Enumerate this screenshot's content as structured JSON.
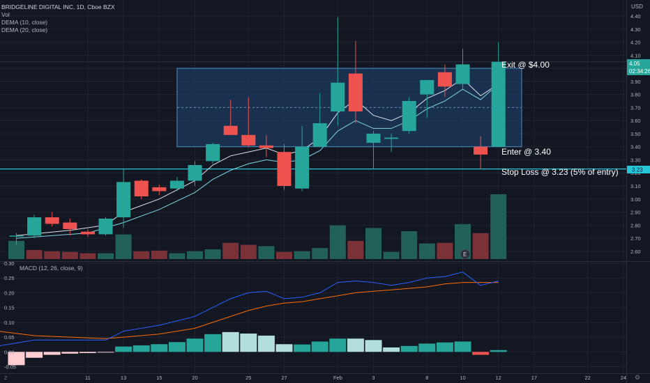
{
  "header": {
    "symbol_line": "BRIDGELINE DIGITAL INC, 1D, Cboe BZX",
    "indicators": [
      "Vol",
      "DEMA (10, close)",
      "DEMA (20, close)"
    ]
  },
  "macd_header": "MACD (12, 26, close, 9)",
  "currency_label": "USD",
  "annotations": {
    "exit": "Exit @ $4.00",
    "enter": "Enter @ 3.40",
    "stop": "Stop Loss @ 3.23 (5% of entry)"
  },
  "price_badges": {
    "last": "4.05",
    "countdown": "02:34:26",
    "stop": "3.23"
  },
  "earnings_marker": "E",
  "colors": {
    "background": "#131722",
    "up": "#26a69a",
    "down": "#ef5350",
    "vol_up": "#22605a",
    "vol_down": "#7a3238",
    "dema10": "#e0e3eb",
    "dema20": "#7fd7e3",
    "macd_line": "#2962ff",
    "signal_line": "#ff6d00",
    "zone_fill": "#1e3a5f",
    "zone_border": "#4a90c8",
    "stop_line": "#26c6da"
  },
  "chart_data": {
    "type": "candlestick",
    "x_tick_labels": [
      "11",
      "13",
      "15",
      "20",
      "25",
      "27",
      "Feb",
      "3",
      "8",
      "10",
      "12",
      "17",
      "22",
      "24"
    ],
    "x_tick_positions": [
      4,
      6,
      8,
      10,
      13,
      15,
      18,
      20,
      23,
      25,
      27,
      29,
      32,
      34
    ],
    "price_axis": {
      "min": 2.53,
      "max": 4.48,
      "ticks": [
        2.6,
        2.7,
        2.8,
        2.9,
        3.0,
        3.1,
        3.2,
        3.3,
        3.4,
        3.5,
        3.6,
        3.7,
        3.8,
        3.9,
        4.0,
        4.1,
        4.2,
        4.3,
        4.4
      ]
    },
    "candles": [
      {
        "i": 0,
        "o": 2.72,
        "h": 2.74,
        "l": 2.65,
        "c": 2.72
      },
      {
        "i": 1,
        "o": 2.72,
        "h": 2.88,
        "l": 2.7,
        "c": 2.86
      },
      {
        "i": 2,
        "o": 2.86,
        "h": 2.9,
        "l": 2.79,
        "c": 2.81
      },
      {
        "i": 3,
        "o": 2.82,
        "h": 2.85,
        "l": 2.72,
        "c": 2.77
      },
      {
        "i": 4,
        "o": 2.75,
        "h": 2.77,
        "l": 2.71,
        "c": 2.73
      },
      {
        "i": 5,
        "o": 2.73,
        "h": 2.86,
        "l": 2.72,
        "c": 2.85
      },
      {
        "i": 6,
        "o": 2.86,
        "h": 3.23,
        "l": 2.78,
        "c": 3.13
      },
      {
        "i": 7,
        "o": 3.14,
        "h": 3.15,
        "l": 3.0,
        "c": 3.02
      },
      {
        "i": 8,
        "o": 3.09,
        "h": 3.11,
        "l": 3.03,
        "c": 3.06
      },
      {
        "i": 9,
        "o": 3.08,
        "h": 3.17,
        "l": 3.06,
        "c": 3.14
      },
      {
        "i": 10,
        "o": 3.14,
        "h": 3.29,
        "l": 3.1,
        "c": 3.26
      },
      {
        "i": 11,
        "o": 3.29,
        "h": 3.43,
        "l": 3.27,
        "c": 3.42
      },
      {
        "i": 12,
        "o": 3.56,
        "h": 3.76,
        "l": 3.5,
        "c": 3.49
      },
      {
        "i": 13,
        "o": 3.49,
        "h": 3.78,
        "l": 3.4,
        "c": 3.41
      },
      {
        "i": 14,
        "o": 3.41,
        "h": 3.49,
        "l": 3.32,
        "c": 3.39
      },
      {
        "i": 15,
        "o": 3.36,
        "h": 3.42,
        "l": 3.07,
        "c": 3.1
      },
      {
        "i": 16,
        "o": 3.08,
        "h": 3.56,
        "l": 3.06,
        "c": 3.4
      },
      {
        "i": 17,
        "o": 3.4,
        "h": 3.81,
        "l": 3.4,
        "c": 3.58
      },
      {
        "i": 18,
        "o": 3.67,
        "h": 4.39,
        "l": 3.56,
        "c": 3.89
      },
      {
        "i": 19,
        "o": 3.96,
        "h": 4.21,
        "l": 3.58,
        "c": 3.67
      },
      {
        "i": 20,
        "o": 3.43,
        "h": 3.52,
        "l": 3.23,
        "c": 3.5
      },
      {
        "i": 21,
        "o": 3.46,
        "h": 3.5,
        "l": 3.36,
        "c": 3.47
      },
      {
        "i": 22,
        "o": 3.52,
        "h": 3.78,
        "l": 3.5,
        "c": 3.75
      },
      {
        "i": 23,
        "o": 3.8,
        "h": 3.9,
        "l": 3.62,
        "c": 3.91
      },
      {
        "i": 24,
        "o": 3.97,
        "h": 4.03,
        "l": 3.78,
        "c": 3.86
      },
      {
        "i": 25,
        "o": 3.88,
        "h": 4.15,
        "l": 3.84,
        "c": 4.03
      },
      {
        "i": 26,
        "o": 3.4,
        "h": 3.48,
        "l": 3.23,
        "c": 3.34
      },
      {
        "i": 27,
        "o": 3.4,
        "h": 4.2,
        "l": 3.4,
        "c": 4.05
      }
    ],
    "dema10": [
      [
        0,
        2.72
      ],
      [
        3,
        2.76
      ],
      [
        5,
        2.8
      ],
      [
        6,
        2.9
      ],
      [
        8,
        3.0
      ],
      [
        10,
        3.14
      ],
      [
        11,
        3.26
      ],
      [
        12,
        3.33
      ],
      [
        13,
        3.36
      ],
      [
        14,
        3.39
      ],
      [
        15,
        3.34
      ],
      [
        16,
        3.37
      ],
      [
        17,
        3.47
      ],
      [
        18,
        3.66
      ],
      [
        19,
        3.76
      ],
      [
        20,
        3.64
      ],
      [
        21,
        3.6
      ],
      [
        22,
        3.66
      ],
      [
        23,
        3.77
      ],
      [
        24,
        3.83
      ],
      [
        25,
        3.92
      ],
      [
        26,
        3.79
      ],
      [
        27,
        3.88
      ]
    ],
    "dema20": [
      [
        0,
        2.7
      ],
      [
        4,
        2.74
      ],
      [
        6,
        2.82
      ],
      [
        8,
        2.92
      ],
      [
        10,
        3.05
      ],
      [
        11,
        3.15
      ],
      [
        12,
        3.22
      ],
      [
        13,
        3.27
      ],
      [
        14,
        3.3
      ],
      [
        15,
        3.28
      ],
      [
        16,
        3.3
      ],
      [
        17,
        3.37
      ],
      [
        18,
        3.52
      ],
      [
        19,
        3.6
      ],
      [
        20,
        3.54
      ],
      [
        21,
        3.54
      ],
      [
        22,
        3.6
      ],
      [
        23,
        3.69
      ],
      [
        24,
        3.75
      ],
      [
        25,
        3.84
      ],
      [
        26,
        3.76
      ],
      [
        27,
        3.88
      ]
    ],
    "volume_axis": {
      "max": 100
    },
    "volume": [
      {
        "i": 0,
        "v": 28,
        "up": true
      },
      {
        "i": 1,
        "v": 14,
        "up": false
      },
      {
        "i": 2,
        "v": 12,
        "up": false
      },
      {
        "i": 3,
        "v": 11,
        "up": false
      },
      {
        "i": 4,
        "v": 9,
        "up": false
      },
      {
        "i": 5,
        "v": 9,
        "up": true
      },
      {
        "i": 6,
        "v": 38,
        "up": true
      },
      {
        "i": 7,
        "v": 12,
        "up": false
      },
      {
        "i": 8,
        "v": 13,
        "up": false
      },
      {
        "i": 9,
        "v": 9,
        "up": true
      },
      {
        "i": 10,
        "v": 12,
        "up": true
      },
      {
        "i": 11,
        "v": 15,
        "up": true
      },
      {
        "i": 12,
        "v": 25,
        "up": false
      },
      {
        "i": 13,
        "v": 22,
        "up": false
      },
      {
        "i": 14,
        "v": 20,
        "up": true
      },
      {
        "i": 15,
        "v": 11,
        "up": false
      },
      {
        "i": 16,
        "v": 12,
        "up": true
      },
      {
        "i": 17,
        "v": 17,
        "up": true
      },
      {
        "i": 18,
        "v": 52,
        "up": true
      },
      {
        "i": 19,
        "v": 28,
        "up": false
      },
      {
        "i": 20,
        "v": 48,
        "up": true
      },
      {
        "i": 21,
        "v": 11,
        "up": true
      },
      {
        "i": 22,
        "v": 43,
        "up": true
      },
      {
        "i": 23,
        "v": 24,
        "up": true
      },
      {
        "i": 24,
        "v": 25,
        "up": false
      },
      {
        "i": 25,
        "v": 54,
        "up": true
      },
      {
        "i": 26,
        "v": 40,
        "up": false
      },
      {
        "i": 27,
        "v": 100,
        "up": true
      }
    ],
    "macd_axis": {
      "min": -0.07,
      "max": 0.3,
      "ticks": [
        -0.05,
        0.0,
        0.05,
        0.1,
        0.15,
        0.2,
        0.25,
        0.3
      ]
    },
    "macd_line": [
      [
        -1,
        0.02
      ],
      [
        1,
        0.04
      ],
      [
        3,
        0.04
      ],
      [
        5,
        0.04
      ],
      [
        6,
        0.07
      ],
      [
        8,
        0.09
      ],
      [
        10,
        0.12
      ],
      [
        11,
        0.15
      ],
      [
        12,
        0.18
      ],
      [
        13,
        0.2
      ],
      [
        14,
        0.205
      ],
      [
        15,
        0.18
      ],
      [
        16,
        0.185
      ],
      [
        17,
        0.2
      ],
      [
        18,
        0.235
      ],
      [
        19,
        0.24
      ],
      [
        20,
        0.235
      ],
      [
        21,
        0.225
      ],
      [
        22,
        0.235
      ],
      [
        23,
        0.25
      ],
      [
        24,
        0.255
      ],
      [
        25,
        0.27
      ],
      [
        26,
        0.225
      ],
      [
        27,
        0.24
      ]
    ],
    "signal_line": [
      [
        -1,
        0.07
      ],
      [
        1,
        0.055
      ],
      [
        3,
        0.05
      ],
      [
        5,
        0.045
      ],
      [
        6,
        0.05
      ],
      [
        8,
        0.06
      ],
      [
        10,
        0.08
      ],
      [
        11,
        0.1
      ],
      [
        12,
        0.12
      ],
      [
        13,
        0.14
      ],
      [
        14,
        0.155
      ],
      [
        15,
        0.165
      ],
      [
        16,
        0.17
      ],
      [
        17,
        0.18
      ],
      [
        18,
        0.19
      ],
      [
        19,
        0.2
      ],
      [
        20,
        0.205
      ],
      [
        21,
        0.21
      ],
      [
        22,
        0.215
      ],
      [
        23,
        0.22
      ],
      [
        24,
        0.23
      ],
      [
        25,
        0.235
      ],
      [
        26,
        0.235
      ],
      [
        27,
        0.235
      ]
    ],
    "histogram": [
      -0.045,
      -0.02,
      -0.01,
      -0.006,
      -0.004,
      -0.002,
      0.018,
      0.022,
      0.026,
      0.033,
      0.045,
      0.06,
      0.067,
      0.062,
      0.055,
      0.026,
      0.025,
      0.035,
      0.045,
      0.045,
      0.04,
      0.015,
      0.02,
      0.028,
      0.032,
      0.035,
      -0.01,
      0.006
    ],
    "zone": {
      "start_i": 9,
      "end_i": 28.3,
      "top": 4.0,
      "bottom": 3.4,
      "mid": 3.7
    },
    "stop_level": 3.23,
    "price_guide_level": 4.05
  }
}
